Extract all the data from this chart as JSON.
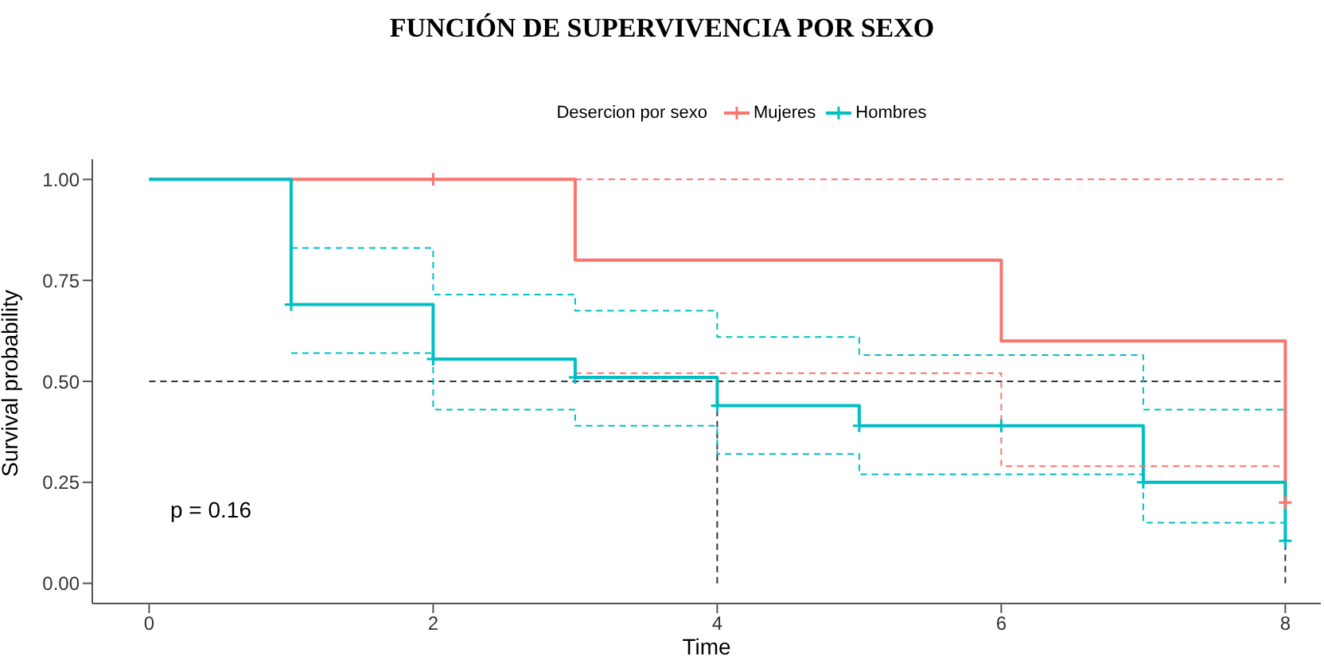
{
  "chart_data": {
    "type": "step",
    "title": "FUNCIÓN DE SUPERVIVENCIA POR SEXO",
    "xlabel": "Time",
    "ylabel": "Survival probability",
    "legend_title": "Desercion por sexo",
    "legend": "top",
    "xlim": [
      -0.4,
      8.25
    ],
    "ylim": [
      -0.05,
      1.05
    ],
    "xticks": [
      0,
      2,
      4,
      6,
      8
    ],
    "yticks": [
      {
        "value": 0,
        "label": "0.00"
      },
      {
        "value": 0.25,
        "label": "0.25"
      },
      {
        "value": 0.5,
        "label": "0.50"
      },
      {
        "value": 0.75,
        "label": "0.75"
      },
      {
        "value": 1,
        "label": "1.00"
      }
    ],
    "grid": false,
    "series": [
      {
        "name": "Mujeres",
        "color": "#f8766d",
        "marker": "none",
        "line_style": "solid",
        "x": [
          0,
          3,
          6,
          8
        ],
        "values": [
          1,
          0.8,
          0.6,
          0.2
        ]
      },
      {
        "name": "Hombres",
        "color": "#00bfc4",
        "marker": "none",
        "line_style": "solid",
        "x": [
          0,
          1,
          2,
          3,
          4,
          5,
          7,
          8
        ],
        "values": [
          1,
          0.69,
          0.555,
          0.51,
          0.44,
          0.39,
          0.25,
          0.105
        ]
      },
      {
        "color": "#f8766d",
        "marker": "none",
        "line_style": "dashed",
        "x": [
          3,
          8
        ],
        "values": [
          1,
          1
        ]
      },
      {
        "color": "#f8766d",
        "marker": "none",
        "line_style": "dashed",
        "x": [
          3,
          6,
          8
        ],
        "values": [
          0.52,
          0.29,
          0.29
        ]
      },
      {
        "color": "#00bfc4",
        "marker": "none",
        "line_style": "dashed",
        "x": [
          1,
          2,
          3,
          4,
          5,
          7,
          8
        ],
        "values": [
          0.83,
          0.715,
          0.675,
          0.61,
          0.565,
          0.43,
          0.43
        ]
      },
      {
        "color": "#00bfc4",
        "marker": "none",
        "line_style": "dashed",
        "x": [
          1,
          2,
          3,
          4,
          5,
          7,
          8
        ],
        "values": [
          0.57,
          0.43,
          0.39,
          0.32,
          0.27,
          0.15,
          0.15
        ]
      },
      {
        "type": "scatter",
        "color": "#f8766d",
        "marker": "cross",
        "x": [
          2,
          8
        ],
        "values": [
          1,
          0.2
        ]
      },
      {
        "type": "scatter",
        "color": "#00bfc4",
        "marker": "cross",
        "x": [
          1,
          2,
          3,
          4,
          5,
          6,
          7,
          8
        ],
        "values": [
          0.69,
          0.555,
          0.51,
          0.44,
          0.39,
          0.39,
          0.25,
          0.105
        ]
      }
    ],
    "ref_lines": [
      {
        "axis": "y",
        "value": 0.5,
        "color": "#333333",
        "line_style": "dashed"
      },
      {
        "axis": "x",
        "value": 4,
        "color": "#333333",
        "line_style": "dashed"
      },
      {
        "axis": "x",
        "value": 8,
        "color": "#333333",
        "line_style": "dashed"
      }
    ],
    "annotations": [
      "p = 0.16"
    ]
  }
}
